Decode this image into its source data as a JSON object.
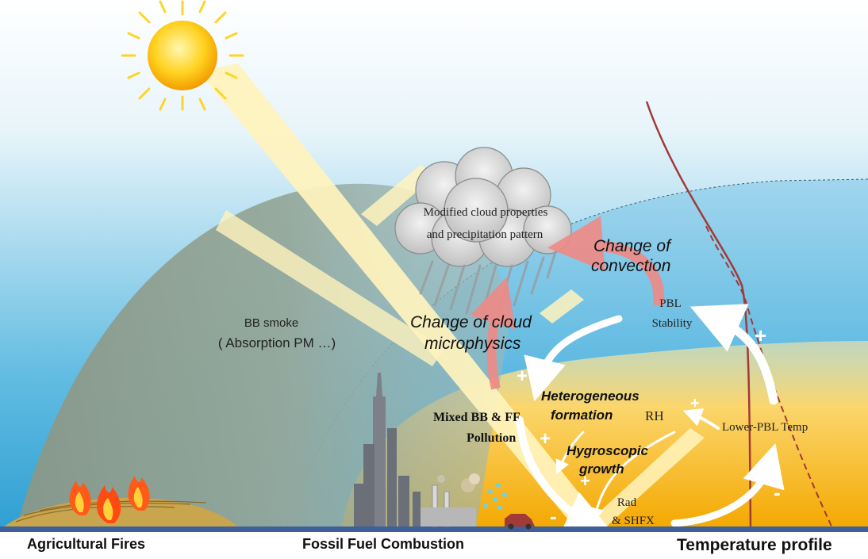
{
  "labels": {
    "cloud_line1": "Modified  cloud  properties",
    "cloud_line2": "and precipitation pattern",
    "change_convection_line1": "Change of",
    "change_convection_line2": "convection",
    "change_cloud_line1": "Change of cloud",
    "change_cloud_line2": "microphysics",
    "bb_smoke_line1": "BB smoke",
    "bb_smoke_line2": "( Absorption PM …)",
    "pbl_line1": "PBL",
    "pbl_line2": "Stability",
    "heterogeneous_line1": "Heterogeneous",
    "heterogeneous_line2": "formation",
    "rh": "RH",
    "mixed_line1": "Mixed BB & FF",
    "mixed_line2": "Pollution",
    "hygroscopic_line1": "Hygroscopic",
    "hygroscopic_line2": "growth",
    "lower_pbl_temp": "Lower-PBL Temp",
    "rad_line1": "Rad",
    "rad_line2": "& SHFX"
  },
  "signs": {
    "plus": "+",
    "minus": "-"
  },
  "bottom": {
    "agricultural_fires": "Agricultural Fires",
    "fossil_fuel": "Fossil Fuel Combustion",
    "temperature_profile": "Temperature  profile"
  },
  "colors": {
    "sky_top": "#ffffff",
    "sky_bottom": "#2f9fd3",
    "smoke_dome": "#8e9f90",
    "pbl_yellow": "#f5b400",
    "sunbeam": "#fff3bd",
    "feedback_arrow": "#f08a86",
    "temperature_line": "#a13a38"
  }
}
